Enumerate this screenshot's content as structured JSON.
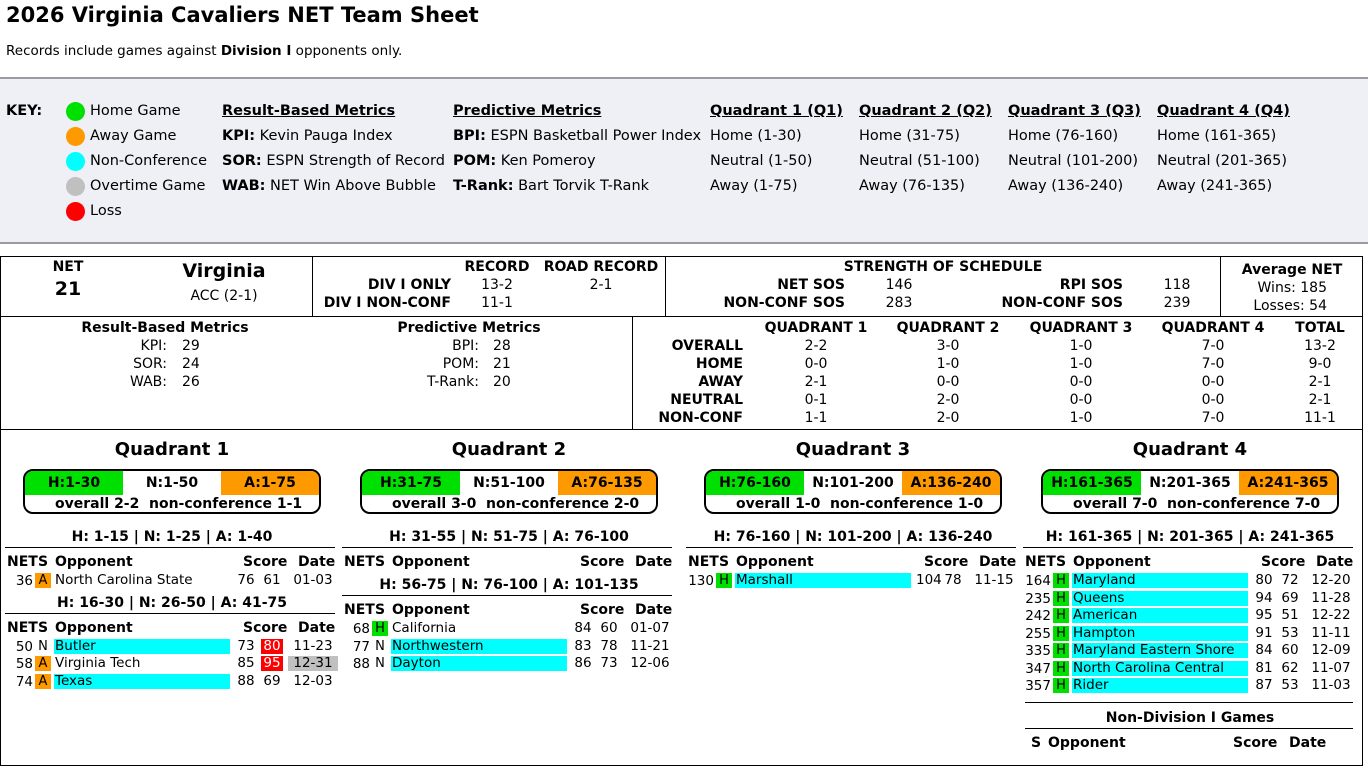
{
  "header": {
    "title": "2026 Virginia Cavaliers NET Team Sheet",
    "subtitle_pre": "Records include games against ",
    "subtitle_bold": "Division I",
    "subtitle_post": " opponents only."
  },
  "key": {
    "label": "KEY:",
    "legend": [
      {
        "label": "Home Game",
        "color": "#00e000"
      },
      {
        "label": "Away Game",
        "color": "#ff9900"
      },
      {
        "label": "Non-Conference",
        "color": "#00ffff"
      },
      {
        "label": "Overtime Game",
        "color": "#c0c0c0"
      },
      {
        "label": "Loss",
        "color": "#ff0000"
      }
    ],
    "result_metrics": {
      "heading": "Result-Based Metrics",
      "items": [
        {
          "abbr": "KPI:",
          "desc": " Kevin Pauga Index"
        },
        {
          "abbr": "SOR:",
          "desc": " ESPN Strength of Record"
        },
        {
          "abbr": "WAB:",
          "desc": " NET Win Above Bubble"
        }
      ]
    },
    "predictive_metrics": {
      "heading": "Predictive Metrics",
      "items": [
        {
          "abbr": "BPI:",
          "desc": " ESPN Basketball Power Index"
        },
        {
          "abbr": "POM:",
          "desc": " Ken Pomeroy"
        },
        {
          "abbr": "T-Rank:",
          "desc": " Bart Torvik T-Rank"
        }
      ]
    },
    "quadrants": [
      {
        "heading": "Quadrant 1 (Q1)",
        "home": "Home (1-30)",
        "neutral": "Neutral (1-50)",
        "away": "Away (1-75)"
      },
      {
        "heading": "Quadrant 2 (Q2)",
        "home": "Home (31-75)",
        "neutral": "Neutral (51-100)",
        "away": "Away (76-135)"
      },
      {
        "heading": "Quadrant 3 (Q3)",
        "home": "Home (76-160)",
        "neutral": "Neutral (101-200)",
        "away": "Away (136-240)"
      },
      {
        "heading": "Quadrant 4 (Q4)",
        "home": "Home (161-365)",
        "neutral": "Neutral (201-365)",
        "away": "Away (241-365)"
      }
    ]
  },
  "team": {
    "net_label": "NET",
    "net_value": "21",
    "name": "Virginia",
    "conference": "ACC (2-1)",
    "record_header": "RECORD",
    "road_header": "ROAD RECORD",
    "div1_label": "DIV I ONLY",
    "div1_record": "13-2",
    "div1_road": "2-1",
    "nonconf_label": "DIV I NON-CONF",
    "nonconf_record": "11-1",
    "sos_header": "STRENGTH OF SCHEDULE",
    "net_sos_label": "NET SOS",
    "net_sos": "146",
    "net_nc_sos_label": "NON-CONF SOS",
    "net_nc_sos": "283",
    "rpi_sos_label": "RPI SOS",
    "rpi_sos": "118",
    "rpi_nc_sos_label": "NON-CONF SOS",
    "rpi_nc_sos": "239",
    "avg_net_label": "Average NET",
    "avg_wins": "Wins: 185",
    "avg_losses": "Losses: 54"
  },
  "metrics": {
    "result_heading": "Result-Based Metrics",
    "result": [
      {
        "label": "KPI:",
        "value": "29"
      },
      {
        "label": "SOR:",
        "value": "24"
      },
      {
        "label": "WAB:",
        "value": "26"
      }
    ],
    "predictive_heading": "Predictive Metrics",
    "predictive": [
      {
        "label": "BPI:",
        "value": "28"
      },
      {
        "label": "POM:",
        "value": "21"
      },
      {
        "label": "T-Rank:",
        "value": "20"
      }
    ]
  },
  "quad_table": {
    "headers": [
      "QUADRANT 1",
      "QUADRANT 2",
      "QUADRANT 3",
      "QUADRANT 4",
      "TOTAL"
    ],
    "rows": [
      {
        "label": "OVERALL",
        "values": [
          "2-2",
          "3-0",
          "1-0",
          "7-0",
          "13-2"
        ]
      },
      {
        "label": "HOME",
        "values": [
          "0-0",
          "1-0",
          "1-0",
          "7-0",
          "9-0"
        ]
      },
      {
        "label": "AWAY",
        "values": [
          "2-1",
          "0-0",
          "0-0",
          "0-0",
          "2-1"
        ]
      },
      {
        "label": "NEUTRAL",
        "values": [
          "0-1",
          "2-0",
          "0-0",
          "0-0",
          "2-1"
        ]
      },
      {
        "label": "NON-CONF",
        "values": [
          "1-1",
          "2-0",
          "1-0",
          "7-0",
          "11-1"
        ]
      }
    ]
  },
  "col_headers": {
    "net": "NET",
    "site": "S",
    "opponent": "Opponent",
    "score": "Score",
    "date": "Date"
  },
  "quadrants": [
    {
      "title": "Quadrant 1",
      "h": "H:1-30",
      "n": "N:1-50",
      "a": "A:1-75",
      "overall": "overall 2-2",
      "nonconf": "non-conference 1-1",
      "groups": [
        {
          "range": "H: 1-15 | N: 1-25 | A: 1-40",
          "games": [
            {
              "net": "36",
              "site": "A",
              "opp": "North Carolina State",
              "nc": false,
              "us": "76",
              "them": "61",
              "loss": false,
              "date": "01-03",
              "ot": false
            }
          ]
        },
        {
          "range": "H: 16-30 | N: 26-50 | A: 41-75",
          "games": [
            {
              "net": "50",
              "site": "N",
              "opp": "Butler",
              "nc": true,
              "us": "73",
              "them": "80",
              "loss": true,
              "date": "11-23",
              "ot": false
            },
            {
              "net": "58",
              "site": "A",
              "opp": "Virginia Tech",
              "nc": false,
              "us": "85",
              "them": "95",
              "loss": true,
              "date": "12-31",
              "ot": true
            },
            {
              "net": "74",
              "site": "A",
              "opp": "Texas",
              "nc": true,
              "us": "88",
              "them": "69",
              "loss": false,
              "date": "12-03",
              "ot": false
            }
          ]
        }
      ]
    },
    {
      "title": "Quadrant 2",
      "h": "H:31-75",
      "n": "N:51-100",
      "a": "A:76-135",
      "overall": "overall 3-0",
      "nonconf": "non-conference 2-0",
      "groups": [
        {
          "range": "H: 31-55 | N: 51-75 | A: 76-100",
          "games": []
        },
        {
          "range": "H: 56-75 | N: 76-100 | A: 101-135",
          "games": [
            {
              "net": "68",
              "site": "H",
              "opp": "California",
              "nc": false,
              "us": "84",
              "them": "60",
              "loss": false,
              "date": "01-07",
              "ot": false
            },
            {
              "net": "77",
              "site": "N",
              "opp": "Northwestern",
              "nc": true,
              "us": "83",
              "them": "78",
              "loss": false,
              "date": "11-21",
              "ot": false
            },
            {
              "net": "88",
              "site": "N",
              "opp": "Dayton",
              "nc": true,
              "us": "86",
              "them": "73",
              "loss": false,
              "date": "12-06",
              "ot": false
            }
          ]
        }
      ]
    },
    {
      "title": "Quadrant 3",
      "h": "H:76-160",
      "n": "N:101-200",
      "a": "A:136-240",
      "overall": "overall 1-0",
      "nonconf": "non-conference 1-0",
      "groups": [
        {
          "range": "H: 76-160 | N: 101-200 | A: 136-240",
          "games": [
            {
              "net": "130",
              "site": "H",
              "opp": "Marshall",
              "nc": true,
              "us": "104",
              "them": "78",
              "loss": false,
              "date": "11-15",
              "ot": false
            }
          ]
        }
      ]
    },
    {
      "title": "Quadrant 4",
      "h": "H:161-365",
      "n": "N:201-365",
      "a": "A:241-365",
      "overall": "overall 7-0",
      "nonconf": "non-conference 7-0",
      "groups": [
        {
          "range": "H: 161-365 | N: 201-365 | A: 241-365",
          "games": [
            {
              "net": "164",
              "site": "H",
              "opp": "Maryland",
              "nc": true,
              "us": "80",
              "them": "72",
              "loss": false,
              "date": "12-20",
              "ot": false
            },
            {
              "net": "235",
              "site": "H",
              "opp": "Queens",
              "nc": true,
              "us": "94",
              "them": "69",
              "loss": false,
              "date": "11-28",
              "ot": false
            },
            {
              "net": "242",
              "site": "H",
              "opp": "American",
              "nc": true,
              "us": "95",
              "them": "51",
              "loss": false,
              "date": "12-22",
              "ot": false
            },
            {
              "net": "255",
              "site": "H",
              "opp": "Hampton",
              "nc": true,
              "us": "91",
              "them": "53",
              "loss": false,
              "date": "11-11",
              "ot": false
            },
            {
              "net": "335",
              "site": "H",
              "opp": "Maryland Eastern Shore",
              "nc": true,
              "us": "84",
              "them": "60",
              "loss": false,
              "date": "12-09",
              "ot": false
            },
            {
              "net": "347",
              "site": "H",
              "opp": "North Carolina Central",
              "nc": true,
              "us": "81",
              "them": "62",
              "loss": false,
              "date": "11-07",
              "ot": false
            },
            {
              "net": "357",
              "site": "H",
              "opp": "Rider",
              "nc": true,
              "us": "87",
              "them": "53",
              "loss": false,
              "date": "11-03",
              "ot": false
            }
          ]
        }
      ],
      "non_d1_title": "Non-Division I Games"
    }
  ]
}
